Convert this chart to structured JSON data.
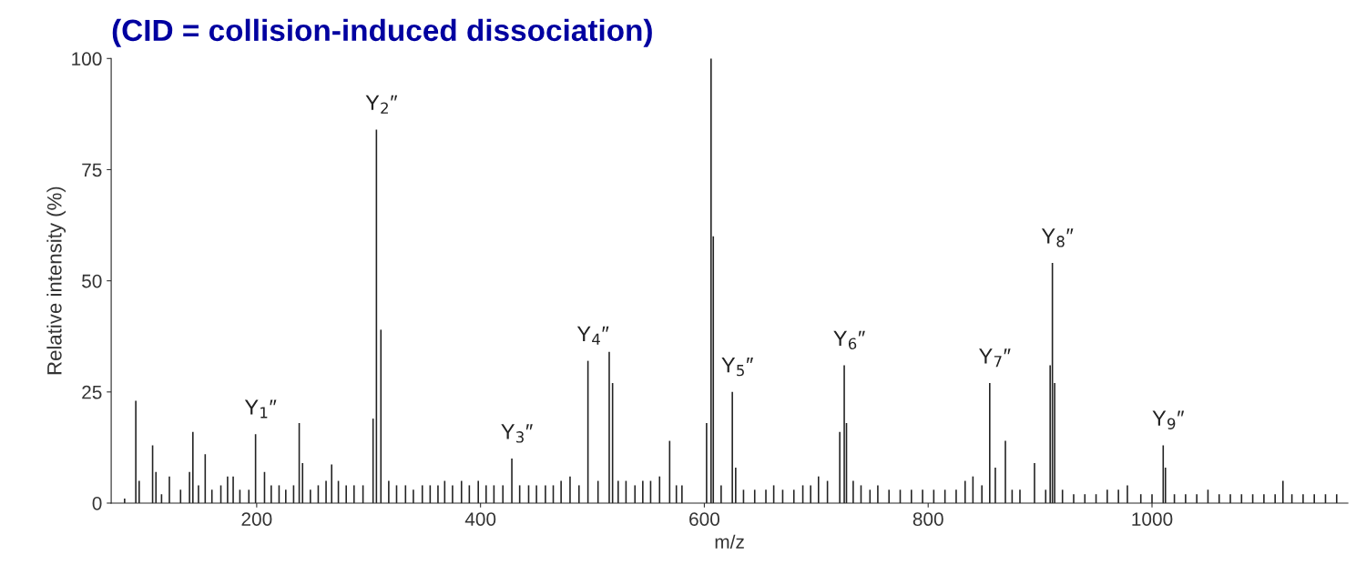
{
  "chart_data": {
    "type": "bar",
    "title": "(CID = collision-induced dissociation)",
    "xlabel": "m/z",
    "ylabel": "Relative intensity (%)",
    "x": [
      82,
      92,
      95,
      107,
      110,
      115,
      122,
      132,
      140,
      143,
      148,
      154,
      160,
      168,
      174,
      179,
      185,
      193,
      199,
      207,
      213,
      220,
      226,
      233,
      238,
      241,
      248,
      255,
      262,
      267,
      273,
      280,
      287,
      295,
      304,
      307,
      311,
      318,
      325,
      333,
      340,
      348,
      355,
      362,
      368,
      375,
      383,
      390,
      398,
      405,
      412,
      420,
      428,
      435,
      443,
      450,
      458,
      465,
      472,
      480,
      488,
      496,
      505,
      515,
      518,
      523,
      530,
      538,
      545,
      552,
      560,
      569,
      575,
      580,
      602,
      606,
      608,
      615,
      625,
      628,
      635,
      645,
      655,
      662,
      670,
      680,
      688,
      695,
      702,
      710,
      721,
      725,
      727,
      733,
      740,
      748,
      755,
      765,
      775,
      785,
      795,
      805,
      815,
      825,
      833,
      840,
      848,
      855,
      860,
      869,
      875,
      882,
      895,
      905,
      909,
      911,
      913,
      920,
      930,
      940,
      950,
      960,
      970,
      978,
      990,
      1000,
      1010,
      1012,
      1020,
      1030,
      1040,
      1050,
      1060,
      1070,
      1080,
      1090,
      1100,
      1110,
      1117,
      1125,
      1135,
      1145,
      1155,
      1165
    ],
    "values": [
      1,
      23,
      5,
      13,
      7,
      2,
      6,
      3,
      7,
      16,
      4,
      11,
      3,
      4,
      6,
      6,
      3,
      3,
      15.5,
      7,
      4,
      4,
      3,
      4,
      18,
      9,
      3,
      4,
      5,
      8.7,
      5,
      4,
      4,
      4,
      19,
      84,
      39,
      5,
      4,
      4,
      3,
      4,
      4,
      4,
      5,
      4,
      5,
      4,
      5,
      4,
      4,
      4,
      10,
      4,
      4,
      4,
      4,
      4,
      5,
      6,
      4,
      32,
      5,
      34,
      27,
      5,
      5,
      4,
      5,
      5,
      6,
      14,
      4,
      4,
      18,
      100,
      60,
      4,
      25,
      8,
      3,
      3,
      3,
      4,
      3,
      3,
      4,
      4,
      6,
      5,
      16,
      31,
      18,
      5,
      4,
      3,
      4,
      3,
      3,
      3,
      3,
      3,
      3,
      3,
      5,
      6,
      4,
      27,
      8,
      14,
      3,
      3,
      9,
      3,
      31,
      54,
      27,
      3,
      2,
      2,
      2,
      3,
      3,
      4,
      2,
      2,
      13,
      8,
      2,
      2,
      2,
      3,
      2,
      2,
      2,
      2,
      2,
      2,
      5,
      2,
      2,
      2,
      2,
      2
    ],
    "color": "#222222",
    "xlim": [
      70,
      1175
    ],
    "xticks": [
      200,
      400,
      600,
      800,
      1000
    ],
    "ylim": [
      0,
      100
    ],
    "yticks": [
      0,
      25,
      50,
      75,
      100
    ],
    "grid": false,
    "annotations": [
      {
        "text": "Y$_{1}$″",
        "x": 199,
        "y": 15.5
      },
      {
        "text": "Y$_{2}$″",
        "x": 307,
        "y": 84
      },
      {
        "text": "Y$_{3}$″",
        "x": 428,
        "y": 10
      },
      {
        "text": "Y$_{4}$″",
        "x": 496,
        "y": 32
      },
      {
        "text": "Y$_{5}$″",
        "x": 625,
        "y": 25
      },
      {
        "text": "Y$_{6}$″",
        "x": 725,
        "y": 31
      },
      {
        "text": "Y$_{7}$″",
        "x": 855,
        "y": 27
      },
      {
        "text": "Y$_{8}$″",
        "x": 911,
        "y": 54
      },
      {
        "text": "Y$_{9}$″",
        "x": 1010,
        "y": 13
      }
    ]
  }
}
